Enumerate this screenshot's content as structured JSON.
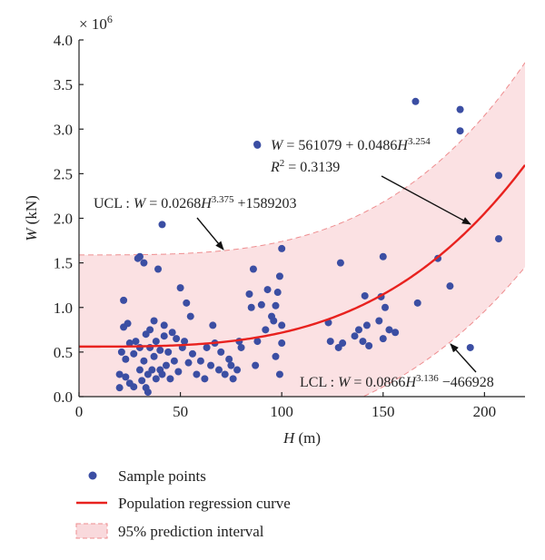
{
  "chart_data": {
    "type": "scatter",
    "title": "",
    "xlabel": "H (m)",
    "ylabel": "W (kN)",
    "y_multiplier": "× 10^6",
    "xlim": [
      0,
      220
    ],
    "ylim": [
      0,
      4.0
    ],
    "x_ticks": [
      0,
      50,
      100,
      150,
      200
    ],
    "y_ticks": [
      0.0,
      0.5,
      1.0,
      1.5,
      2.0,
      2.5,
      3.0,
      3.5,
      4.0
    ],
    "y_tick_labels": [
      "0.0",
      "0.5",
      "1.0",
      "1.5",
      "2.0",
      "2.5",
      "3.0",
      "3.5",
      "4.0"
    ],
    "x_tick_labels": [
      "0",
      "50",
      "100",
      "150",
      "200"
    ],
    "grid": false,
    "legend_position": "bottom",
    "regression": {
      "a": 0.561079,
      "b": 4.86e-08,
      "c": 3.254
    },
    "ucl": {
      "a": 1.589203,
      "b": 2.68e-08,
      "c": 3.375
    },
    "lcl": {
      "a": -0.466928,
      "b": 8.66e-08,
      "c": 3.136
    },
    "annotations": {
      "regression_equation": "W = 561079 + 0.0486H^3.254",
      "r_squared": "R² = 0.3139",
      "ucl_equation": "UCL : W = 0.0268H^3.375 +1589203",
      "lcl_equation": "LCL : W = 0.0866H^3.136 −466928"
    },
    "legend": [
      {
        "label": "Sample points",
        "color": "#3b4ea3",
        "type": "marker"
      },
      {
        "label": "Population regression curve",
        "color": "#e8221f",
        "type": "line"
      },
      {
        "label": "95% prediction interval",
        "color": "#f9d9dc",
        "type": "band"
      }
    ],
    "colors": {
      "points": "#3b4ea3",
      "regression": "#e8221f",
      "band_fill": "#fbe1e3",
      "band_edge": "#ee8d8f"
    },
    "points": [
      [
        20,
        0.1
      ],
      [
        20,
        0.25
      ],
      [
        21,
        0.5
      ],
      [
        22,
        1.08
      ],
      [
        22,
        0.78
      ],
      [
        23,
        0.22
      ],
      [
        23,
        0.42
      ],
      [
        24,
        0.82
      ],
      [
        25,
        0.15
      ],
      [
        25,
        0.6
      ],
      [
        27,
        0.11
      ],
      [
        27,
        0.48
      ],
      [
        28,
        0.62
      ],
      [
        29,
        1.55
      ],
      [
        30,
        1.57
      ],
      [
        30,
        0.3
      ],
      [
        30,
        0.55
      ],
      [
        31,
        0.18
      ],
      [
        32,
        0.4
      ],
      [
        32,
        1.5
      ],
      [
        33,
        0.7
      ],
      [
        33,
        0.1
      ],
      [
        34,
        0.25
      ],
      [
        34,
        0.05
      ],
      [
        35,
        0.55
      ],
      [
        35,
        0.75
      ],
      [
        36,
        0.3
      ],
      [
        37,
        0.85
      ],
      [
        37,
        0.45
      ],
      [
        38,
        0.2
      ],
      [
        38,
        0.62
      ],
      [
        39,
        1.43
      ],
      [
        40,
        0.3
      ],
      [
        40,
        0.52
      ],
      [
        41,
        1.93
      ],
      [
        41,
        0.25
      ],
      [
        42,
        0.8
      ],
      [
        42,
        0.68
      ],
      [
        43,
        0.35
      ],
      [
        44,
        0.5
      ],
      [
        45,
        0.2
      ],
      [
        46,
        0.72
      ],
      [
        47,
        0.4
      ],
      [
        48,
        0.65
      ],
      [
        49,
        0.28
      ],
      [
        50,
        1.22
      ],
      [
        51,
        0.55
      ],
      [
        52,
        0.62
      ],
      [
        53,
        1.05
      ],
      [
        54,
        0.38
      ],
      [
        55,
        0.9
      ],
      [
        56,
        0.48
      ],
      [
        58,
        0.25
      ],
      [
        60,
        0.4
      ],
      [
        62,
        0.2
      ],
      [
        63,
        0.55
      ],
      [
        65,
        0.35
      ],
      [
        66,
        0.8
      ],
      [
        67,
        0.6
      ],
      [
        69,
        0.3
      ],
      [
        70,
        0.5
      ],
      [
        72,
        0.25
      ],
      [
        74,
        0.42
      ],
      [
        75,
        0.35
      ],
      [
        76,
        0.2
      ],
      [
        78,
        0.3
      ],
      [
        79,
        0.62
      ],
      [
        80,
        0.55
      ],
      [
        84,
        1.15
      ],
      [
        85,
        1.0
      ],
      [
        86,
        1.43
      ],
      [
        87,
        0.35
      ],
      [
        88,
        2.82
      ],
      [
        88,
        0.62
      ],
      [
        90,
        1.03
      ],
      [
        92,
        0.75
      ],
      [
        93,
        1.2
      ],
      [
        95,
        0.9
      ],
      [
        96,
        0.85
      ],
      [
        97,
        0.45
      ],
      [
        97,
        1.02
      ],
      [
        98,
        1.17
      ],
      [
        99,
        0.25
      ],
      [
        99,
        1.35
      ],
      [
        100,
        0.6
      ],
      [
        100,
        0.8
      ],
      [
        100,
        1.66
      ],
      [
        123,
        0.83
      ],
      [
        124,
        0.62
      ],
      [
        128,
        0.55
      ],
      [
        129,
        1.5
      ],
      [
        130,
        0.6
      ],
      [
        136,
        0.68
      ],
      [
        138,
        0.75
      ],
      [
        140,
        0.62
      ],
      [
        141,
        1.13
      ],
      [
        142,
        0.8
      ],
      [
        143,
        0.57
      ],
      [
        148,
        0.85
      ],
      [
        149,
        1.12
      ],
      [
        150,
        0.65
      ],
      [
        150,
        1.57
      ],
      [
        151,
        1.0
      ],
      [
        153,
        0.75
      ],
      [
        156,
        0.72
      ],
      [
        166,
        3.31
      ],
      [
        167,
        1.05
      ],
      [
        177,
        1.55
      ],
      [
        183,
        1.24
      ],
      [
        188,
        2.98
      ],
      [
        188,
        3.22
      ],
      [
        193,
        0.55
      ],
      [
        207,
        2.48
      ],
      [
        207,
        1.77
      ]
    ]
  }
}
